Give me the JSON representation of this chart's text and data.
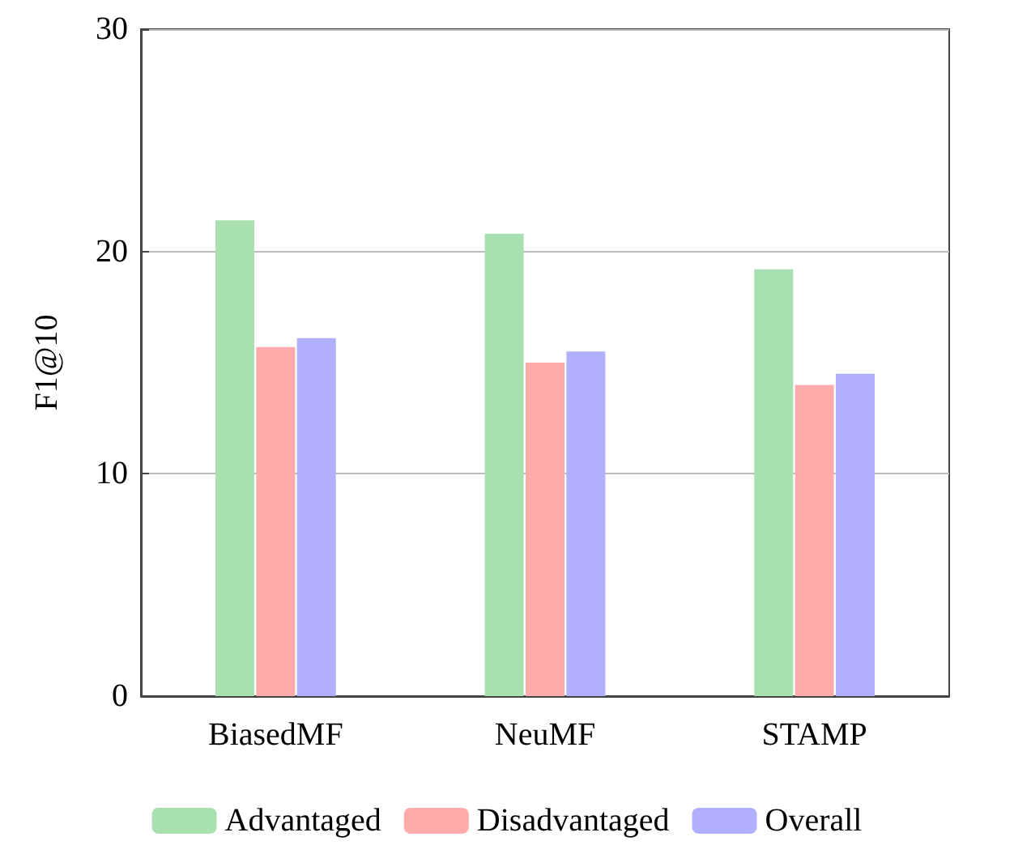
{
  "chart_data": {
    "type": "bar",
    "ylabel": "F1@10",
    "categories": [
      "BiasedMF",
      "NeuMF",
      "STAMP"
    ],
    "series": [
      {
        "name": "Advantaged",
        "color": "#a8e0b0",
        "values": [
          21.4,
          20.8,
          19.2
        ]
      },
      {
        "name": "Disadvantaged",
        "color": "#ffabab",
        "values": [
          15.7,
          15.0,
          14.0
        ]
      },
      {
        "name": "Overall",
        "color": "#b0b0ff",
        "values": [
          16.1,
          15.5,
          14.5
        ]
      }
    ],
    "ylim": [
      0,
      30
    ],
    "yticks": [
      0,
      10,
      20,
      30
    ],
    "grid": "y",
    "legend": "bottom"
  }
}
